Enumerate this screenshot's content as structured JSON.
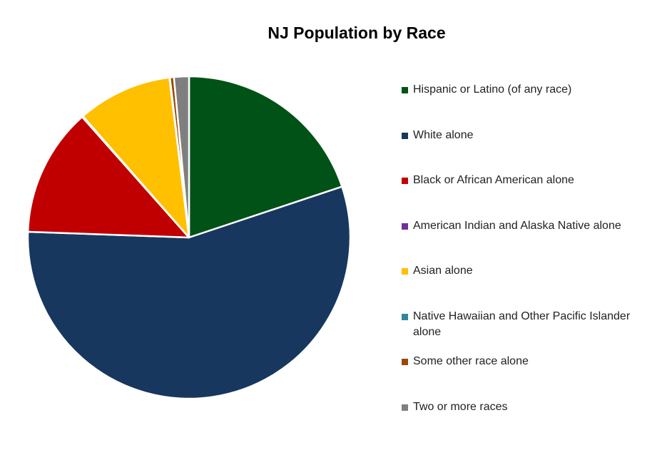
{
  "chart_data": {
    "type": "pie",
    "title": "NJ Population by Race",
    "categories": [
      "Hispanic or Latino (of any race)",
      "White alone",
      "Black or African American alone",
      "American Indian and Alaska Native alone",
      "Asian alone",
      "Native Hawaiian and Other Pacific Islander alone",
      "Some other race alone",
      "Two or more races"
    ],
    "values": [
      19.9,
      55.7,
      12.9,
      0.1,
      9.5,
      0.05,
      0.4,
      1.5
    ],
    "colors": [
      "#005216",
      "#17375e",
      "#c00000",
      "#7030a0",
      "#ffc000",
      "#31859c",
      "#984807",
      "#7f7f7f"
    ],
    "legend": "right"
  }
}
